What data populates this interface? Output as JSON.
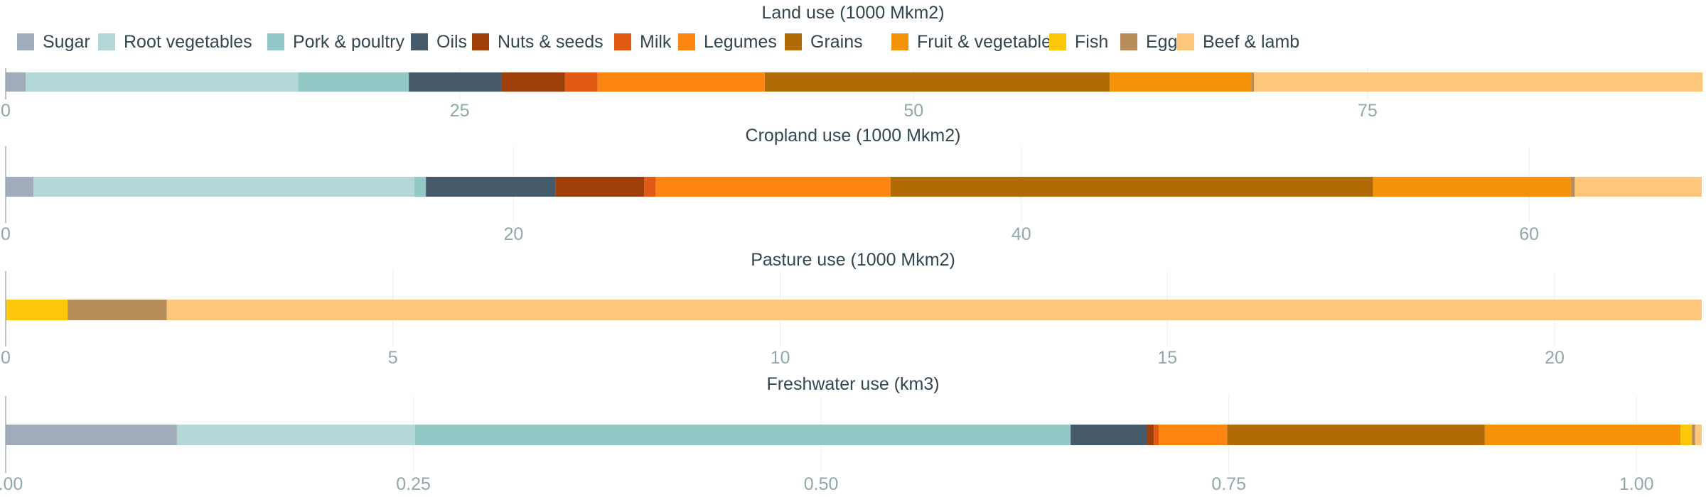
{
  "legend": [
    {
      "name": "Sugar",
      "color": "#a1acba"
    },
    {
      "name": "Root vegetables",
      "color": "#b3d8d7"
    },
    {
      "name": "Pork & poultry",
      "color": "#93c8c7"
    },
    {
      "name": "Oils",
      "color": "#455a6b"
    },
    {
      "name": "Nuts & seeds",
      "color": "#9e3f09"
    },
    {
      "name": "Milk",
      "color": "#e05a13"
    },
    {
      "name": "Legumes",
      "color": "#fd8512"
    },
    {
      "name": "Grains",
      "color": "#b06a06"
    },
    {
      "name": "Fruit & vegetables",
      "color": "#f49308"
    },
    {
      "name": "Fish",
      "color": "#fdc70a"
    },
    {
      "name": "Eggs",
      "color": "#b78e5a"
    },
    {
      "name": "Beef & lamb",
      "color": "#fcc77a"
    }
  ],
  "chart_data": [
    {
      "type": "bar",
      "orientation": "horizontal",
      "stacked": true,
      "title": "Land use (1000 Mkm2)",
      "xlim": [
        0,
        93.4
      ],
      "ticks": [
        "0",
        "25",
        "50",
        "75"
      ],
      "tick_values": [
        0,
        25,
        50,
        75
      ],
      "segments": [
        {
          "name": "Sugar",
          "value": 1.1
        },
        {
          "name": "Root vegetables",
          "value": 15.0
        },
        {
          "name": "Pork & poultry",
          "value": 6.1
        },
        {
          "name": "Oils",
          "value": 5.1
        },
        {
          "name": "Nuts & seeds",
          "value": 3.5
        },
        {
          "name": "Milk",
          "value": 1.8
        },
        {
          "name": "Legumes",
          "value": 9.2
        },
        {
          "name": "Grains",
          "value": 19.0
        },
        {
          "name": "Fruit & vegetables",
          "value": 7.8
        },
        {
          "name": "Fish",
          "value": 0.0
        },
        {
          "name": "Eggs",
          "value": 0.15
        },
        {
          "name": "Beef & lamb",
          "value": 24.7
        }
      ]
    },
    {
      "type": "bar",
      "orientation": "horizontal",
      "stacked": true,
      "title": "Cropland use (1000 Mkm2)",
      "xlim": [
        0,
        66.8
      ],
      "ticks": [
        "0",
        "20",
        "40",
        "60"
      ],
      "tick_values": [
        0,
        20,
        40,
        60
      ],
      "segments": [
        {
          "name": "Sugar",
          "value": 1.1
        },
        {
          "name": "Root vegetables",
          "value": 15.0
        },
        {
          "name": "Pork & poultry",
          "value": 0.45
        },
        {
          "name": "Oils",
          "value": 5.1
        },
        {
          "name": "Nuts & seeds",
          "value": 3.5
        },
        {
          "name": "Milk",
          "value": 0.45
        },
        {
          "name": "Legumes",
          "value": 9.25
        },
        {
          "name": "Grains",
          "value": 19.0
        },
        {
          "name": "Fruit & vegetables",
          "value": 7.8
        },
        {
          "name": "Fish",
          "value": 0.0
        },
        {
          "name": "Eggs",
          "value": 0.15
        },
        {
          "name": "Beef & lamb",
          "value": 5.0
        }
      ]
    },
    {
      "type": "bar",
      "orientation": "horizontal",
      "stacked": true,
      "title": "Pasture use (1000 Mkm2)",
      "xlim": [
        0,
        21.9
      ],
      "ticks": [
        "0",
        "5",
        "10",
        "15",
        "20"
      ],
      "tick_values": [
        0,
        5,
        10,
        15,
        20
      ],
      "segments": [
        {
          "name": "Fish",
          "value": 0.8
        },
        {
          "name": "Eggs",
          "value": 1.28
        },
        {
          "name": "Beef & lamb",
          "value": 19.82
        }
      ]
    },
    {
      "type": "bar",
      "orientation": "horizontal",
      "stacked": true,
      "title": "Freshwater use (km3)",
      "xlim": [
        0,
        1.04
      ],
      "ticks": [
        "0.00",
        "0.25",
        "0.50",
        "0.75",
        "1.00"
      ],
      "tick_values": [
        0,
        0.25,
        0.5,
        0.75,
        1.0
      ],
      "segments": [
        {
          "name": "Sugar",
          "value": 0.105
        },
        {
          "name": "Root vegetables",
          "value": 0.146
        },
        {
          "name": "Pork & poultry",
          "value": 0.402
        },
        {
          "name": "Oils",
          "value": 0.047
        },
        {
          "name": "Nuts & seeds",
          "value": 0.004
        },
        {
          "name": "Milk",
          "value": 0.003
        },
        {
          "name": "Legumes",
          "value": 0.042
        },
        {
          "name": "Grains",
          "value": 0.158
        },
        {
          "name": "Fruit & vegetables",
          "value": 0.12
        },
        {
          "name": "Fish",
          "value": 0.007
        },
        {
          "name": "Eggs",
          "value": 0.002
        },
        {
          "name": "Beef & lamb",
          "value": 0.004
        }
      ]
    }
  ]
}
